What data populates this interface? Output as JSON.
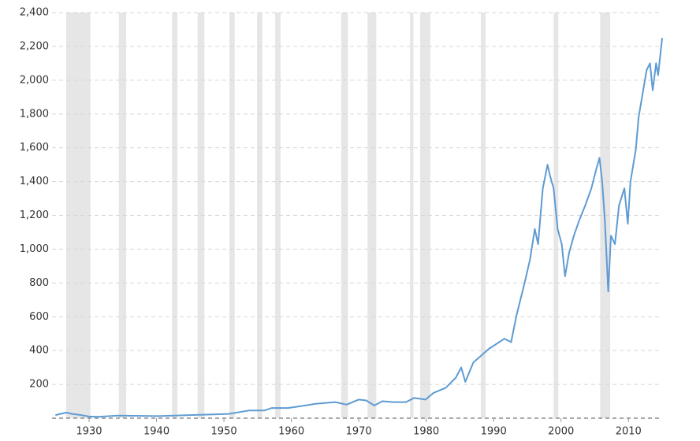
{
  "chart_data": {
    "type": "line",
    "x": [
      1925.0,
      1926.6,
      1927.5,
      1928.5,
      1930.0,
      1931.4,
      1934.3,
      1940.2,
      1944.9,
      1950.7,
      1953.7,
      1956.0,
      1957.1,
      1959.5,
      1961.2,
      1963.6,
      1966.5,
      1968.2,
      1970.0,
      1971.1,
      1972.3,
      1973.5,
      1975.2,
      1977.0,
      1978.2,
      1979.9,
      1981.1,
      1982.9,
      1984.4,
      1985.2,
      1985.8,
      1987.0,
      1989.3,
      1991.6,
      1992.6,
      1993.4,
      1994.6,
      1995.4,
      1996.1,
      1996.6,
      1997.3,
      1998.0,
      1998.4,
      1998.9,
      1999.5,
      2000.1,
      2000.6,
      2001.2,
      2001.9,
      2002.7,
      2003.6,
      2004.5,
      2005.2,
      2005.7,
      2006.1,
      2006.5,
      2007.0,
      2007.4,
      2008.0,
      2008.6,
      2009.4,
      2009.9,
      2010.3,
      2011.1,
      2011.5,
      2012.1,
      2012.7,
      2013.2,
      2013.6,
      2014.1,
      2014.4,
      2015.0
    ],
    "values": [
      18,
      33,
      25,
      20,
      10,
      8,
      15,
      12,
      18,
      25,
      45,
      45,
      60,
      60,
      70,
      85,
      95,
      80,
      110,
      105,
      75,
      100,
      95,
      95,
      120,
      110,
      150,
      180,
      240,
      300,
      215,
      330,
      410,
      470,
      450,
      610,
      800,
      940,
      1120,
      1030,
      1360,
      1500,
      1430,
      1360,
      1120,
      1030,
      840,
      980,
      1080,
      1170,
      1260,
      1360,
      1470,
      1540,
      1400,
      1170,
      750,
      1080,
      1030,
      1260,
      1360,
      1150,
      1400,
      1590,
      1780,
      1920,
      2060,
      2100,
      1940,
      2100,
      2030,
      2250
    ],
    "color": "#5e9bd3",
    "shaded_periods": [
      [
        1926.6,
        1930.2
      ],
      [
        1934.4,
        1935.5
      ],
      [
        1942.3,
        1943.1
      ],
      [
        1946.1,
        1947.1
      ],
      [
        1950.8,
        1951.6
      ],
      [
        1954.9,
        1955.7
      ],
      [
        1957.6,
        1958.4
      ],
      [
        1967.4,
        1968.4
      ],
      [
        1971.3,
        1972.6
      ],
      [
        1977.6,
        1978.1
      ],
      [
        1979.1,
        1980.6
      ],
      [
        1988.1,
        1988.8
      ],
      [
        1998.9,
        1999.6
      ],
      [
        2005.8,
        2007.3
      ]
    ],
    "shaded_color": "#e6e6e6",
    "xlim": [
      1924.5,
      2015
    ],
    "xticks": [
      1930,
      1940,
      1950,
      1960,
      1970,
      1980,
      1990,
      2000,
      2010
    ],
    "ylim": [
      0,
      2400
    ],
    "yticks": [
      200,
      400,
      600,
      800,
      {
        "value": 1000,
        "label": "1,000"
      },
      {
        "value": 1200,
        "label": "1,200"
      },
      {
        "value": 1400,
        "label": "1,400"
      },
      {
        "value": 1600,
        "label": "1,600"
      },
      {
        "value": 1800,
        "label": "1,800"
      },
      {
        "value": 2000,
        "label": "2,000"
      },
      {
        "value": 2200,
        "label": "2,200"
      },
      {
        "value": 2400,
        "label": "2,400"
      }
    ],
    "grid": true
  }
}
